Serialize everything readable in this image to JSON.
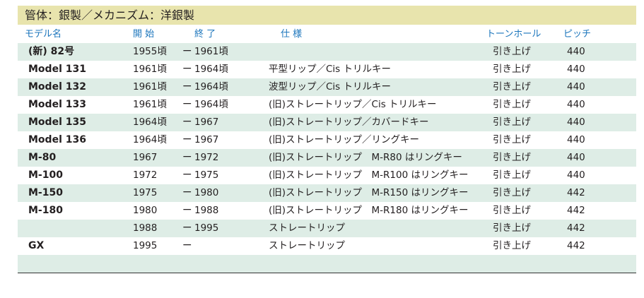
{
  "title": "管体：銀製／メカニズム：洋銀製",
  "headers": {
    "model": "モデル名",
    "start": "開 始",
    "end": "終 了",
    "spec": "仕 様",
    "tone": "トーンホール",
    "pitch": "ピッチ"
  },
  "rows": [
    {
      "model": "(新) 82号",
      "start": "1955頃",
      "dash": "ー",
      "end": "1961頃",
      "spec": "",
      "tone": "引き上げ",
      "pitch": "440"
    },
    {
      "model": "Model 131",
      "start": "1961頃",
      "dash": "ー",
      "end": "1964頃",
      "spec": "平型リップ／Cis トリルキー",
      "tone": "引き上げ",
      "pitch": "440"
    },
    {
      "model": "Model 132",
      "start": "1961頃",
      "dash": "ー",
      "end": "1964頃",
      "spec": "波型リップ／Cis トリルキー",
      "tone": "引き上げ",
      "pitch": "440"
    },
    {
      "model": "Model 133",
      "start": "1961頃",
      "dash": "ー",
      "end": "1964頃",
      "spec": "(旧)ストレートリップ／Cis トリルキー",
      "tone": "引き上げ",
      "pitch": "440"
    },
    {
      "model": "Model 135",
      "start": "1964頃",
      "dash": "ー",
      "end": "1967",
      "spec": "(旧)ストレートリップ／カバードキー",
      "tone": "引き上げ",
      "pitch": "440"
    },
    {
      "model": "Model 136",
      "start": "1964頃",
      "dash": "ー",
      "end": "1967",
      "spec": "(旧)ストレートリップ／リングキー",
      "tone": "引き上げ",
      "pitch": "440"
    },
    {
      "model": "M-80",
      "start": "1967",
      "dash": "ー",
      "end": "1972",
      "spec": "(旧)ストレートリップ　M-R80 はリングキー",
      "tone": "引き上げ",
      "pitch": "440"
    },
    {
      "model": "M-100",
      "start": "1972",
      "dash": "ー",
      "end": "1975",
      "spec": "(旧)ストレートリップ　M-R100 はリングキー",
      "tone": "引き上げ",
      "pitch": "440"
    },
    {
      "model": "M-150",
      "start": "1975",
      "dash": "ー",
      "end": "1980",
      "spec": "(旧)ストレートリップ　M-R150 はリングキー",
      "tone": "引き上げ",
      "pitch": "442"
    },
    {
      "model": "M-180",
      "start": "1980",
      "dash": "ー",
      "end": "1988",
      "spec": "(旧)ストレートリップ　M-R180 はリングキー",
      "tone": "引き上げ",
      "pitch": "442"
    },
    {
      "model": "",
      "start": "1988",
      "dash": "ー",
      "end": "1995",
      "spec": "ストレートリップ",
      "tone": "引き上げ",
      "pitch": "442"
    },
    {
      "model": "GX",
      "start": "1995",
      "dash": "ー",
      "end": "",
      "spec": "ストレートリップ",
      "tone": "引き上げ",
      "pitch": "442"
    },
    {
      "model": "",
      "start": "",
      "dash": "",
      "end": "",
      "spec": "",
      "tone": "",
      "pitch": ""
    }
  ]
}
